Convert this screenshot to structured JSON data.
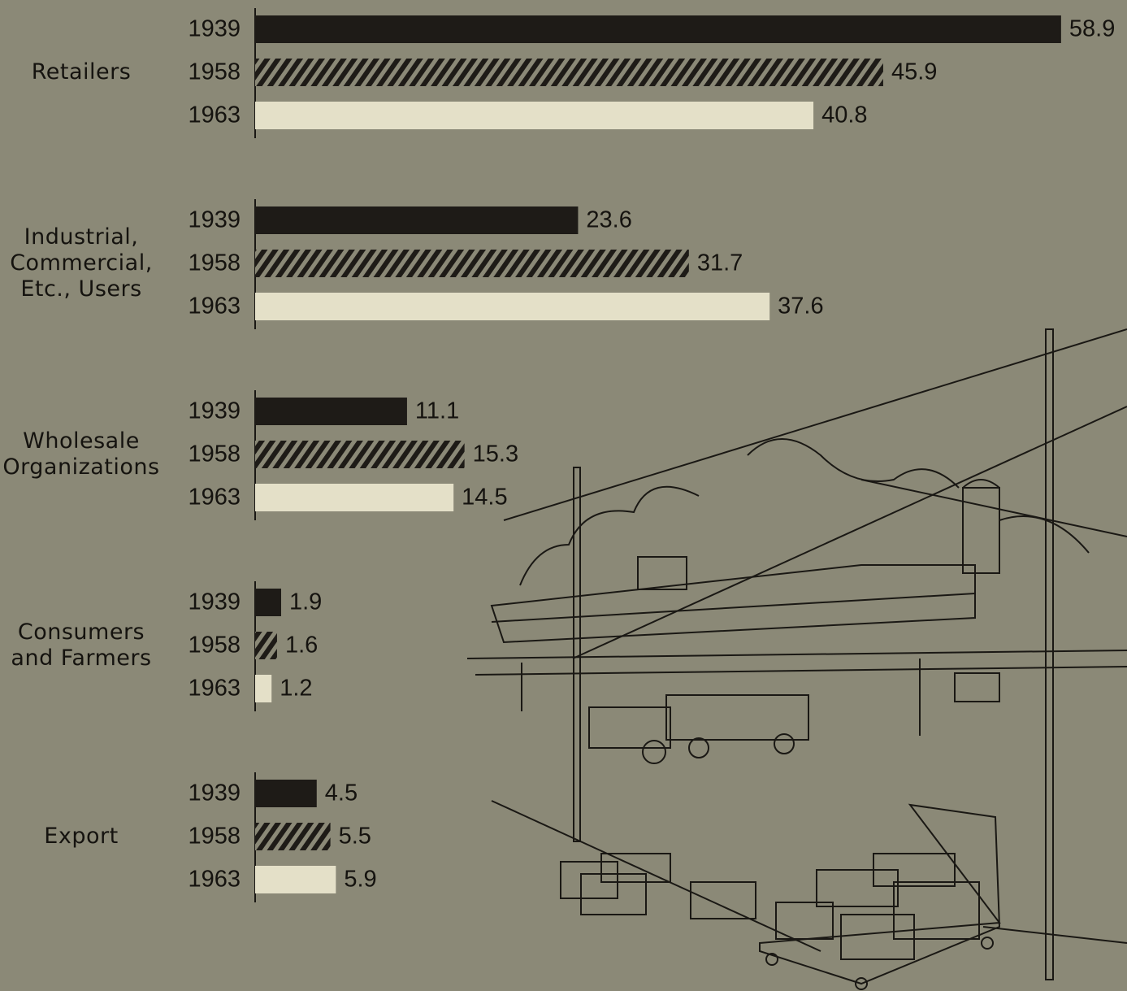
{
  "chart_data": {
    "type": "grouped-hbar",
    "categories": [
      "Retailers",
      "Industrial,\nCommercial,\nEtc.,  Users",
      "Wholesale\nOrganizations",
      "Consumers\nand  Farmers",
      "Export"
    ],
    "series": [
      {
        "name": "1939",
        "color": "#1e1b17",
        "pattern": "solid",
        "values": [
          58.9,
          23.6,
          11.1,
          1.9,
          4.5
        ]
      },
      {
        "name": "1958",
        "color": "#1e1b17",
        "pattern": "hatch",
        "values": [
          45.9,
          31.7,
          15.3,
          1.6,
          5.5
        ]
      },
      {
        "name": "1963",
        "color": "#e4e0c8",
        "pattern": "solid",
        "values": [
          40.8,
          37.6,
          14.5,
          1.2,
          5.9
        ]
      }
    ]
  }
}
